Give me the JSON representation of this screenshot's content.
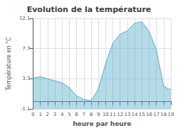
{
  "chart_data": {
    "type": "area",
    "title": "Evolution de la température",
    "xlabel": "heure par heure",
    "ylabel": "Température en °C",
    "x": [
      0,
      1,
      2,
      3,
      4,
      5,
      6,
      7,
      8,
      9,
      10,
      11,
      12,
      13,
      14,
      15,
      16,
      17,
      18,
      19
    ],
    "values": [
      3.4,
      3.6,
      3.3,
      3.0,
      2.7,
      2.0,
      0.8,
      0.3,
      0.1,
      1.8,
      5.5,
      8.5,
      9.8,
      10.3,
      11.4,
      11.6,
      10.2,
      7.5,
      2.2,
      1.7
    ],
    "color": "#5aaecc",
    "xlim": [
      0,
      19
    ],
    "xticks": [
      0,
      1,
      2,
      3,
      4,
      5,
      6,
      7,
      8,
      9,
      10,
      11,
      12,
      13,
      14,
      15,
      16,
      17,
      18,
      19
    ],
    "ylim": [
      -1.1,
      12.1
    ],
    "yticks": [
      -1.1,
      3.3,
      7.7,
      12.1
    ],
    "grid": true
  }
}
